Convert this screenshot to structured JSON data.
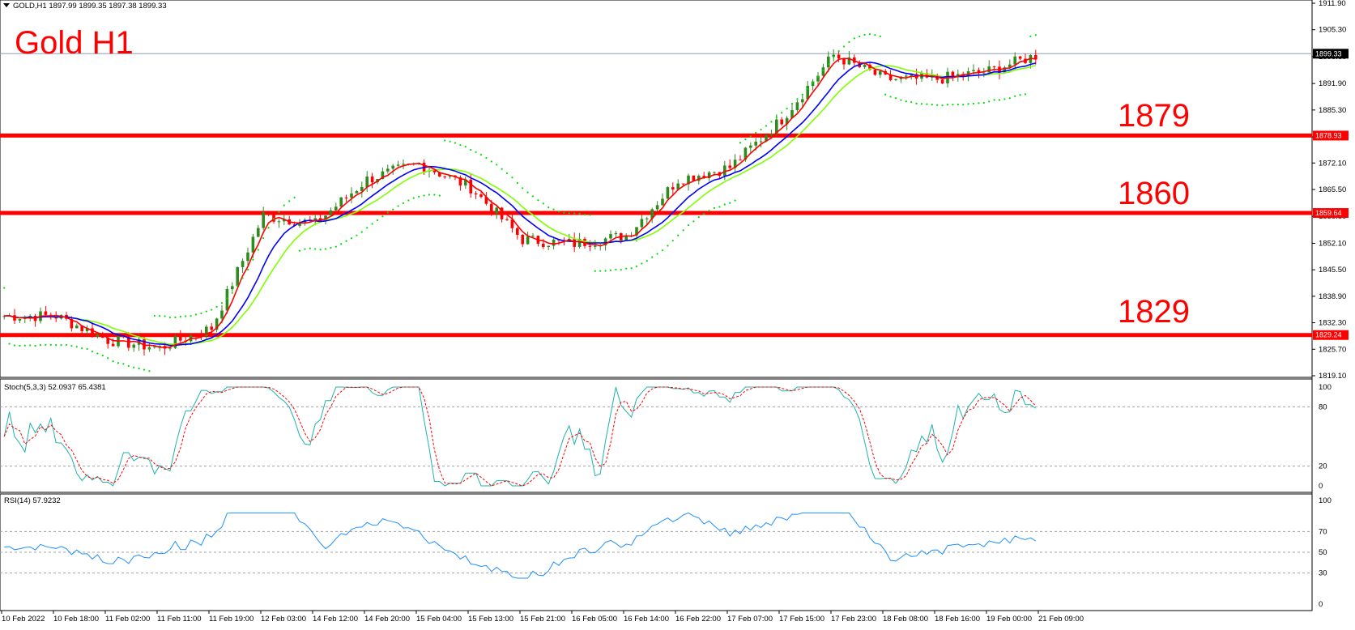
{
  "symbol_header": "GOLD,H1  1897.99 1899.35 1897.38 1899.33",
  "chart_title": "Gold H1",
  "levels": [
    {
      "label": "1879",
      "value": 1878.93,
      "tag": "1878.93"
    },
    {
      "label": "1860",
      "value": 1859.64,
      "tag": "1859.64"
    },
    {
      "label": "1829",
      "value": 1829.24,
      "tag": "1829.24"
    }
  ],
  "current_price": {
    "value": 1899.33,
    "tag": "1899.33"
  },
  "colors": {
    "level": "#ff0000",
    "bull": "#2e8b1f",
    "bear": "#ff0000",
    "ma_fast": "#ff0000",
    "ma_mid": "#0000ff",
    "ma_slow": "#7fff00",
    "sar": "#00dd00",
    "stoch_main": "#20b2aa",
    "stoch_signal": "#ff0000",
    "rsi": "#1e90ff",
    "grid_dash": "#a0a0a0"
  },
  "price_axis_ticks": [
    "1911.90",
    "1905.30",
    "1898.60",
    "1891.90",
    "1885.30",
    "1878.60",
    "1872.10",
    "1865.50",
    "1858.80",
    "1852.10",
    "1845.50",
    "1838.90",
    "1832.30",
    "1825.70",
    "1819.10"
  ],
  "stochastic": {
    "label": "Stoch(5,3,3) 52.0937 65.4381",
    "ticks": [
      "100",
      "80",
      "20",
      "0"
    ]
  },
  "rsi": {
    "label": "RSI(14) 57.9232",
    "ticks": [
      "100",
      "70",
      "50",
      "30",
      "0"
    ]
  },
  "time_axis": [
    "10 Feb 2022",
    "10 Feb 18:00",
    "11 Feb 02:00",
    "11 Feb 11:00",
    "11 Feb 19:00",
    "12 Feb 03:00",
    "14 Feb 12:00",
    "14 Feb 20:00",
    "15 Feb 04:00",
    "15 Feb 13:00",
    "15 Feb 21:00",
    "16 Feb 05:00",
    "16 Feb 14:00",
    "16 Feb 22:00",
    "17 Feb 07:00",
    "17 Feb 15:00",
    "17 Feb 23:00",
    "18 Feb 08:00",
    "18 Feb 16:00",
    "19 Feb 00:00",
    "21 Feb 09:00"
  ],
  "chart_data": {
    "type": "line",
    "title": "Gold H1",
    "ylim": [
      1819.1,
      1911.9
    ],
    "close_path": [
      {
        "x": "10 Feb 2022",
        "y": 1834
      },
      {
        "x": "10 Feb 18:00",
        "y": 1834
      },
      {
        "x": "11 Feb 02:00",
        "y": 1828
      },
      {
        "x": "11 Feb 11:00",
        "y": 1826
      },
      {
        "x": "11 Feb 19:00",
        "y": 1831
      },
      {
        "x": "12 Feb 03:00",
        "y": 1859
      },
      {
        "x": "14 Feb 12:00",
        "y": 1857
      },
      {
        "x": "14 Feb 20:00",
        "y": 1868
      },
      {
        "x": "15 Feb 04:00",
        "y": 1872
      },
      {
        "x": "15 Feb 13:00",
        "y": 1866
      },
      {
        "x": "15 Feb 21:00",
        "y": 1853
      },
      {
        "x": "16 Feb 05:00",
        "y": 1852
      },
      {
        "x": "16 Feb 14:00",
        "y": 1854
      },
      {
        "x": "16 Feb 22:00",
        "y": 1868
      },
      {
        "x": "17 Feb 07:00",
        "y": 1871
      },
      {
        "x": "17 Feb 15:00",
        "y": 1883
      },
      {
        "x": "17 Feb 23:00",
        "y": 1899
      },
      {
        "x": "18 Feb 08:00",
        "y": 1893
      },
      {
        "x": "18 Feb 16:00",
        "y": 1893
      },
      {
        "x": "19 Feb 00:00",
        "y": 1895
      },
      {
        "x": "21 Feb 09:00",
        "y": 1899.33
      }
    ],
    "stochastic_ylim": [
      0,
      100
    ],
    "rsi_ylim": [
      0,
      100
    ],
    "rsi_levels": [
      70,
      50,
      30
    ],
    "stochastic_levels": [
      80,
      20
    ]
  }
}
